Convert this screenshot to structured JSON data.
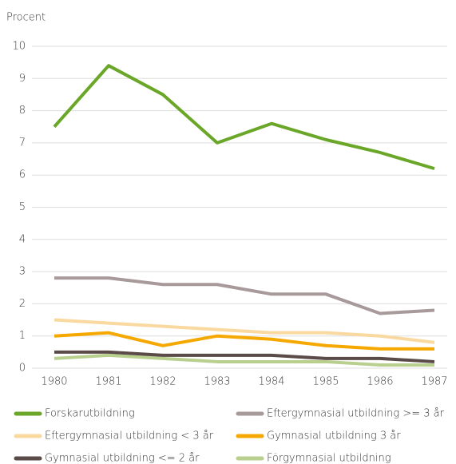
{
  "chart_data": {
    "type": "line",
    "y_label": "Procent",
    "categories": [
      "1980",
      "1981",
      "1982",
      "1983",
      "1984",
      "1985",
      "1986",
      "1987"
    ],
    "ylim": [
      0,
      10
    ],
    "yticks": [
      0,
      1,
      2,
      3,
      4,
      5,
      6,
      7,
      8,
      9,
      10
    ],
    "grid": true,
    "series": [
      {
        "name": "Forskarutbildning",
        "color": "#6aa728",
        "values": [
          7.5,
          9.4,
          8.5,
          7.0,
          7.6,
          7.1,
          6.7,
          6.2
        ]
      },
      {
        "name": "Eftergymnasial utbildning >= 3 år",
        "color": "#a8999a",
        "values": [
          2.8,
          2.8,
          2.6,
          2.6,
          2.3,
          2.3,
          1.7,
          1.8
        ]
      },
      {
        "name": "Eftergymnasial utbildning < 3 år",
        "color": "#fad9a0",
        "values": [
          1.5,
          1.4,
          1.3,
          1.2,
          1.1,
          1.1,
          1.0,
          0.8
        ]
      },
      {
        "name": "Gymnasial utbildning 3 år",
        "color": "#f5a800",
        "values": [
          1.0,
          1.1,
          0.7,
          1.0,
          0.9,
          0.7,
          0.6,
          0.6
        ]
      },
      {
        "name": "Gymnasial utbildning <= 2 år",
        "color": "#5a4a48",
        "values": [
          0.5,
          0.5,
          0.4,
          0.4,
          0.4,
          0.3,
          0.3,
          0.2
        ]
      },
      {
        "name": "Förgymnasial utbildning",
        "color": "#b9cf8e",
        "values": [
          0.3,
          0.4,
          0.3,
          0.2,
          0.2,
          0.2,
          0.1,
          0.1
        ]
      }
    ]
  }
}
